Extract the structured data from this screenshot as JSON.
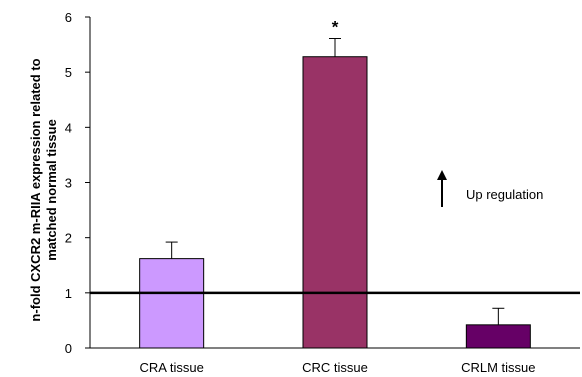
{
  "chart_data": {
    "type": "bar",
    "categories": [
      "CRA tissue",
      "CRC tissue",
      "CRLM tissue"
    ],
    "values": [
      1.62,
      5.28,
      0.42
    ],
    "errors": [
      0.3,
      0.33,
      0.3
    ],
    "bar_colors": [
      "#CC99FF",
      "#993366",
      "#660066"
    ],
    "significance": [
      "",
      "*",
      ""
    ],
    "ylabel_lines": [
      "n-fold CXCR2 m-RIIA expression related to",
      "matched normal tissue"
    ],
    "ylim": [
      0,
      6
    ],
    "yticks": [
      0,
      1,
      2,
      3,
      4,
      5,
      6
    ],
    "reference_line": 1,
    "annotation": {
      "text": "Up regulation",
      "arrow": "up-arrow"
    }
  }
}
